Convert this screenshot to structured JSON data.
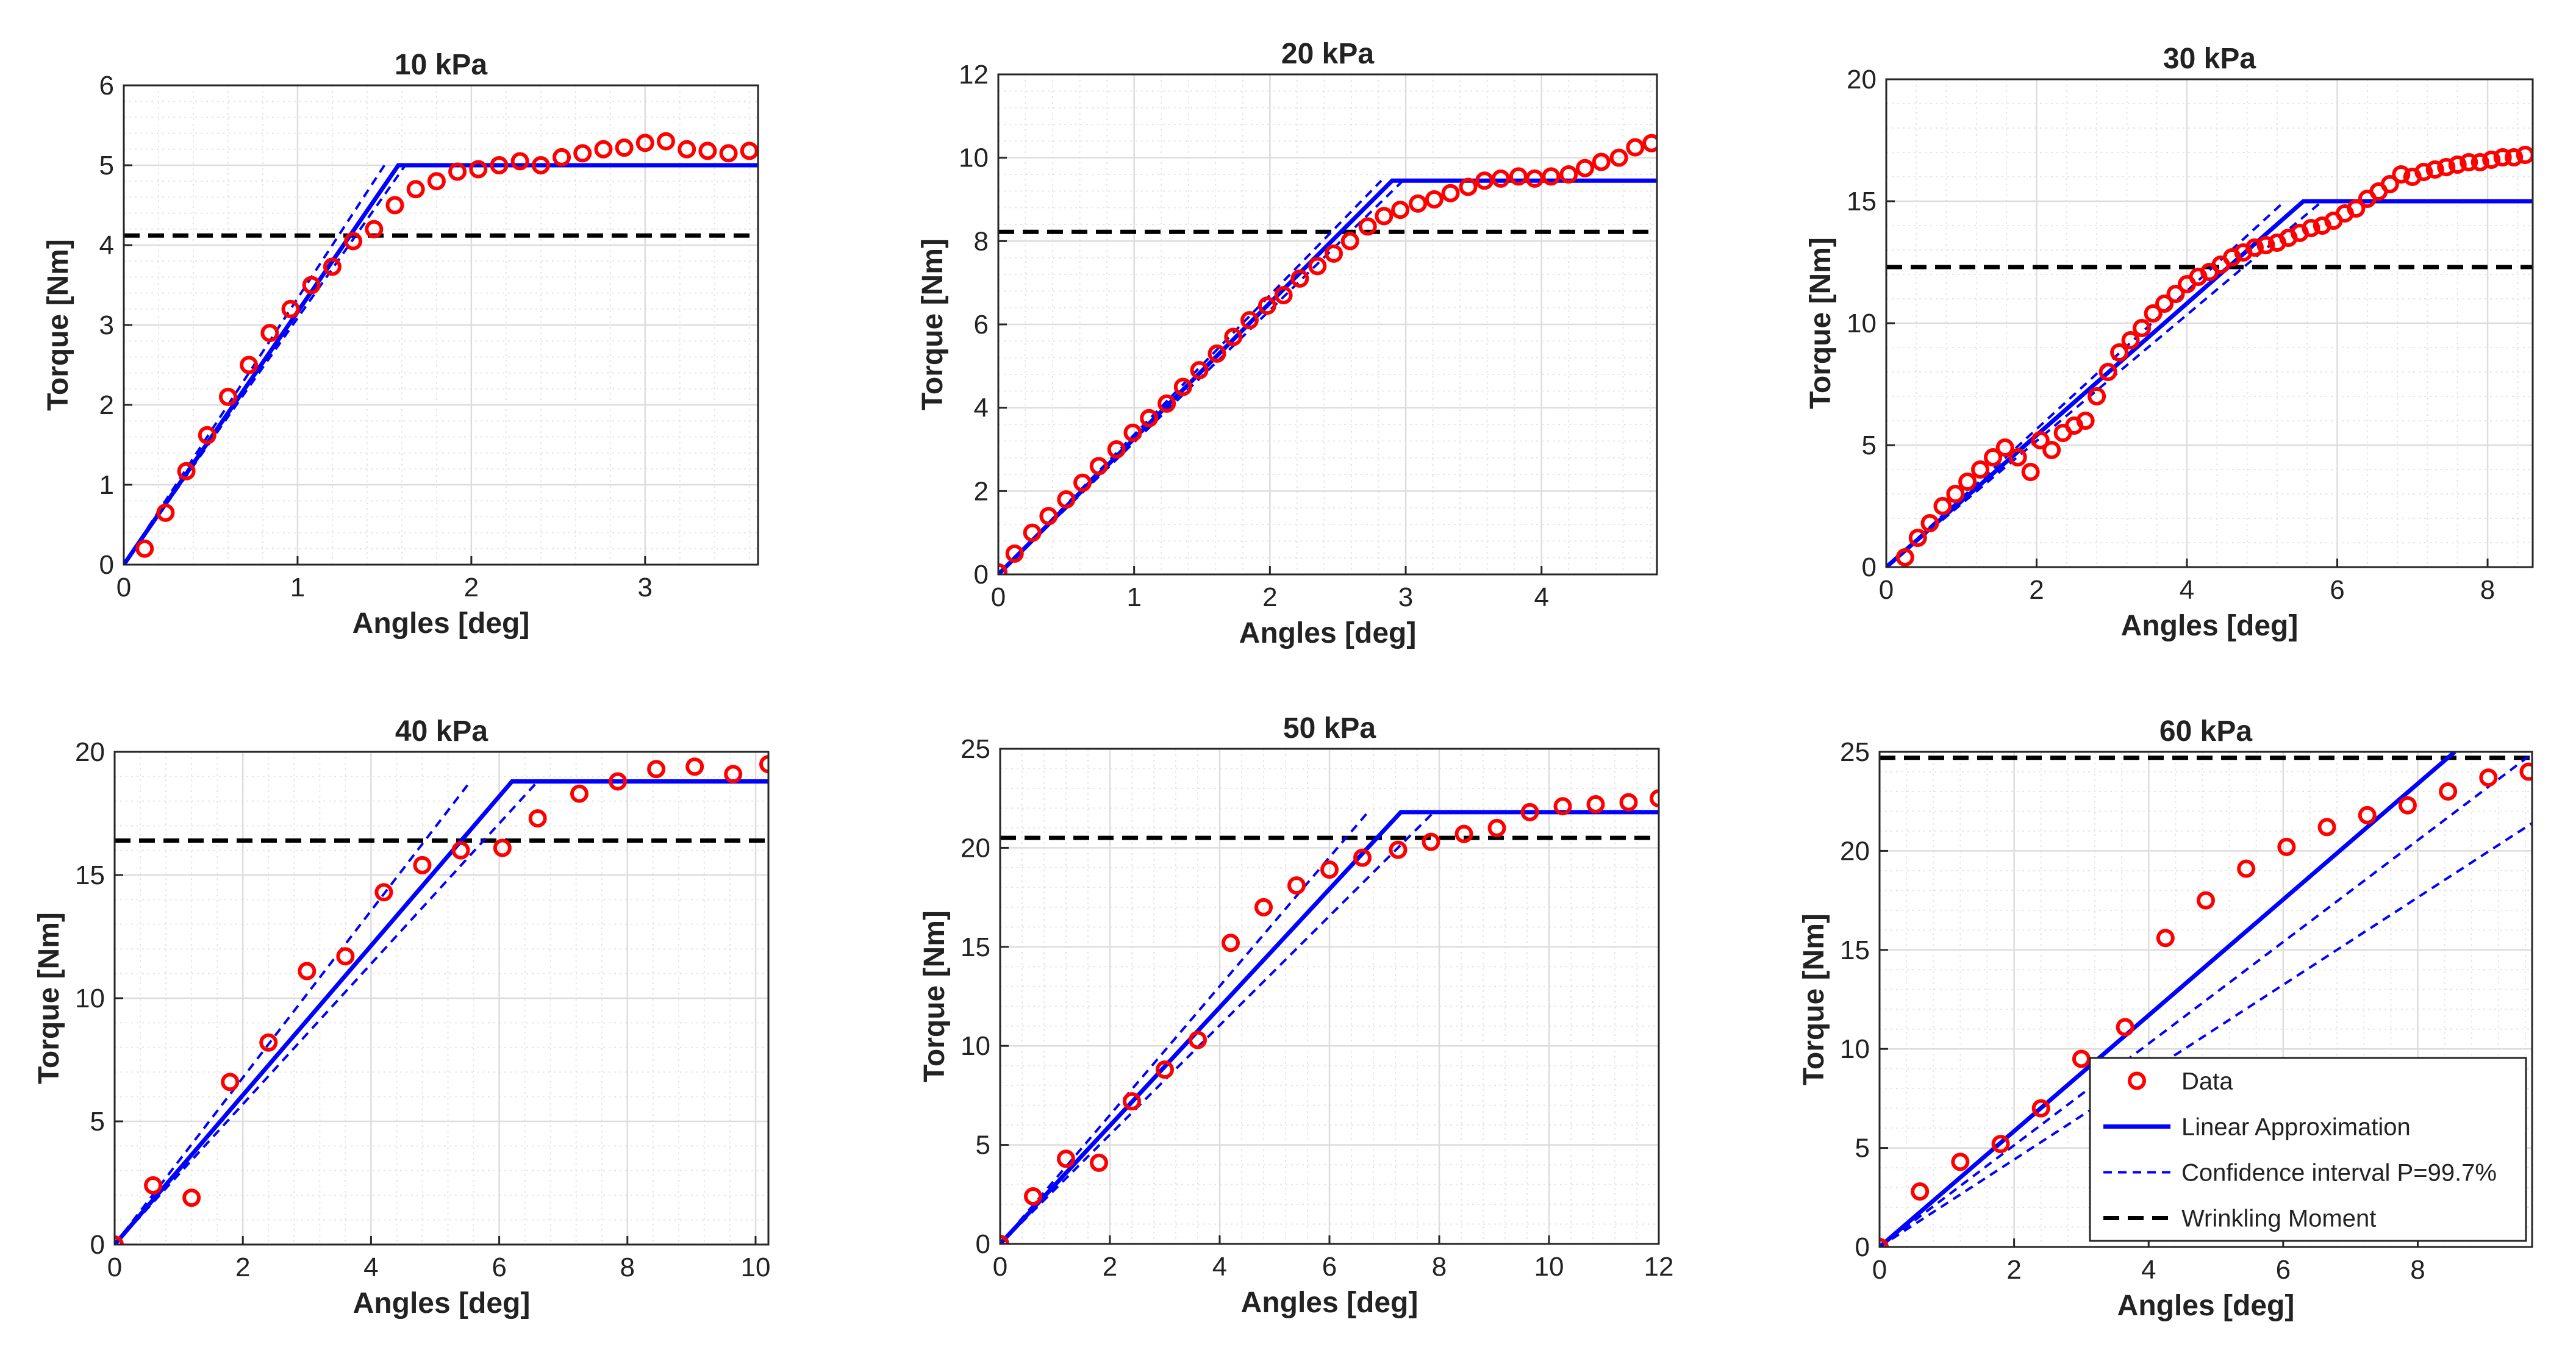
{
  "colors": {
    "data": "#ff0000",
    "linear": "#0000ff",
    "confidence": "#0000ff",
    "wrinkling": "#000000",
    "grid": "#dddddd",
    "axis": "#262626"
  },
  "legend": {
    "data": "Data",
    "linear": "Linear Approximation",
    "confidence": "Confidence interval P=99.7%",
    "wrinkling": "Wrinkling Moment"
  },
  "chart_data": [
    {
      "type": "scatter",
      "title": "10 kPa",
      "xlabel": "Angles [deg]",
      "ylabel": "Torque [Nm]",
      "xlim": [
        0,
        3.65
      ],
      "ylim": [
        0,
        6
      ],
      "xticks": [
        0,
        1,
        2,
        3
      ],
      "yticks": [
        0,
        1,
        2,
        3,
        4,
        5,
        6
      ],
      "data_x": [
        0.12,
        0.24,
        0.36,
        0.48,
        0.6,
        0.72,
        0.84,
        0.96,
        1.08,
        1.2,
        1.32,
        1.44,
        1.56,
        1.68,
        1.8,
        1.92,
        2.04,
        2.16,
        2.28,
        2.4,
        2.52,
        2.64,
        2.76,
        2.88,
        3.0,
        3.12,
        3.24,
        3.36,
        3.48,
        3.6
      ],
      "data_y": [
        0.2,
        0.65,
        1.17,
        1.62,
        2.1,
        2.5,
        2.9,
        3.2,
        3.5,
        3.73,
        4.05,
        4.2,
        4.5,
        4.7,
        4.8,
        4.92,
        4.95,
        5.0,
        5.05,
        5.0,
        5.1,
        5.15,
        5.2,
        5.22,
        5.28,
        5.3,
        5.2,
        5.18,
        5.15,
        5.18
      ],
      "linear": [
        [
          0,
          0
        ],
        [
          1.58,
          5.0
        ],
        [
          3.65,
          5.0
        ]
      ],
      "conf_upper": [
        [
          0,
          0
        ],
        [
          1.5,
          5.0
        ]
      ],
      "conf_lower": [
        [
          0,
          0
        ],
        [
          1.62,
          5.0
        ]
      ],
      "wrinkling": 4.12,
      "legend": false
    },
    {
      "type": "scatter",
      "title": "20 kPa",
      "xlabel": "Angles [deg]",
      "ylabel": "Torque [Nm]",
      "xlim": [
        0,
        4.85
      ],
      "ylim": [
        0,
        12
      ],
      "xticks": [
        0,
        1,
        2,
        3,
        4
      ],
      "yticks": [
        0,
        2,
        4,
        6,
        8,
        10,
        12
      ],
      "data_x": [
        0.0,
        0.12,
        0.25,
        0.37,
        0.5,
        0.62,
        0.74,
        0.87,
        0.99,
        1.11,
        1.24,
        1.36,
        1.48,
        1.61,
        1.73,
        1.85,
        1.98,
        2.1,
        2.22,
        2.35,
        2.47,
        2.59,
        2.72,
        2.84,
        2.96,
        3.09,
        3.21,
        3.33,
        3.46,
        3.58,
        3.7,
        3.83,
        3.95,
        4.07,
        4.2,
        4.32,
        4.44,
        4.57,
        4.69,
        4.81
      ],
      "data_y": [
        0.05,
        0.5,
        1.0,
        1.4,
        1.8,
        2.2,
        2.6,
        3.0,
        3.4,
        3.75,
        4.1,
        4.5,
        4.9,
        5.3,
        5.7,
        6.1,
        6.45,
        6.7,
        7.1,
        7.4,
        7.7,
        8.0,
        8.35,
        8.6,
        8.75,
        8.9,
        9.0,
        9.15,
        9.3,
        9.45,
        9.5,
        9.55,
        9.5,
        9.55,
        9.6,
        9.75,
        9.9,
        10.0,
        10.25,
        10.35
      ],
      "linear": [
        [
          0,
          0
        ],
        [
          2.9,
          9.45
        ],
        [
          4.85,
          9.45
        ]
      ],
      "conf_upper": [
        [
          0,
          0
        ],
        [
          2.82,
          9.45
        ]
      ],
      "conf_lower": [
        [
          0,
          0
        ],
        [
          2.98,
          9.45
        ]
      ],
      "wrinkling": 8.22,
      "legend": false
    },
    {
      "type": "scatter",
      "title": "30 kPa",
      "xlabel": "Angles [deg]",
      "ylabel": "Torque [Nm]",
      "xlim": [
        0,
        8.6
      ],
      "ylim": [
        0,
        20
      ],
      "xticks": [
        0,
        2,
        4,
        6,
        8
      ],
      "yticks": [
        0,
        5,
        10,
        15,
        20
      ],
      "data_x": [
        0.25,
        0.42,
        0.58,
        0.75,
        0.92,
        1.08,
        1.25,
        1.42,
        1.58,
        1.75,
        1.92,
        2.05,
        2.2,
        2.35,
        2.5,
        2.65,
        2.8,
        2.95,
        3.1,
        3.25,
        3.4,
        3.55,
        3.7,
        3.85,
        4.0,
        4.15,
        4.3,
        4.45,
        4.6,
        4.75,
        4.9,
        5.05,
        5.2,
        5.35,
        5.5,
        5.65,
        5.8,
        5.95,
        6.1,
        6.25,
        6.4,
        6.55,
        6.7,
        6.85,
        7.0,
        7.15,
        7.3,
        7.45,
        7.6,
        7.75,
        7.9,
        8.05,
        8.2,
        8.35,
        8.5
      ],
      "data_y": [
        0.4,
        1.2,
        1.8,
        2.5,
        3.0,
        3.5,
        4.0,
        4.5,
        4.9,
        4.5,
        3.9,
        5.2,
        4.8,
        5.5,
        5.8,
        6.0,
        7.0,
        8.0,
        8.8,
        9.3,
        9.8,
        10.4,
        10.8,
        11.2,
        11.6,
        11.9,
        12.1,
        12.4,
        12.7,
        12.9,
        13.1,
        13.2,
        13.3,
        13.5,
        13.7,
        13.9,
        14.0,
        14.2,
        14.5,
        14.7,
        15.1,
        15.4,
        15.7,
        16.1,
        16.0,
        16.2,
        16.3,
        16.4,
        16.5,
        16.6,
        16.6,
        16.7,
        16.8,
        16.8,
        16.9
      ],
      "linear": [
        [
          0,
          0
        ],
        [
          5.55,
          15.0
        ],
        [
          8.6,
          15.0
        ]
      ],
      "conf_upper": [
        [
          0,
          0
        ],
        [
          5.3,
          15.0
        ]
      ],
      "conf_lower": [
        [
          0,
          0
        ],
        [
          5.8,
          15.0
        ]
      ],
      "wrinkling": 12.3,
      "legend": false
    },
    {
      "type": "scatter",
      "title": "40 kPa",
      "xlabel": "Angles [deg]",
      "ylabel": "Torque [Nm]",
      "xlim": [
        0,
        10.2
      ],
      "ylim": [
        0,
        20
      ],
      "xticks": [
        0,
        2,
        4,
        6,
        8,
        10
      ],
      "yticks": [
        0,
        5,
        10,
        15,
        20
      ],
      "data_x": [
        0.0,
        0.6,
        1.2,
        1.8,
        2.4,
        3.0,
        3.6,
        4.2,
        4.8,
        5.4,
        6.05,
        6.6,
        7.25,
        7.85,
        8.45,
        9.05,
        9.65,
        10.2
      ],
      "data_y": [
        0.0,
        2.4,
        1.9,
        6.6,
        8.2,
        11.1,
        11.7,
        14.3,
        15.4,
        16.0,
        16.1,
        17.3,
        18.3,
        18.8,
        19.3,
        19.4,
        19.1,
        19.5
      ],
      "linear": [
        [
          0,
          0
        ],
        [
          6.2,
          18.8
        ],
        [
          10.2,
          18.8
        ]
      ],
      "conf_upper": [
        [
          0,
          0
        ],
        [
          5.55,
          18.8
        ]
      ],
      "conf_lower": [
        [
          0,
          0
        ],
        [
          6.6,
          18.8
        ]
      ],
      "wrinkling": 16.4,
      "legend": false
    },
    {
      "type": "scatter",
      "title": "50 kPa",
      "xlabel": "Angles [deg]",
      "ylabel": "Torque [Nm]",
      "xlim": [
        0,
        12
      ],
      "ylim": [
        0,
        25
      ],
      "xticks": [
        0,
        2,
        4,
        6,
        8,
        10,
        12
      ],
      "yticks": [
        0,
        5,
        10,
        15,
        20,
        25
      ],
      "data_x": [
        0.0,
        0.6,
        1.2,
        1.8,
        2.4,
        3.0,
        3.6,
        4.2,
        4.8,
        5.4,
        6.0,
        6.6,
        7.25,
        7.85,
        8.45,
        9.05,
        9.65,
        10.25,
        10.85,
        11.45,
        12.0
      ],
      "data_y": [
        0.0,
        2.4,
        4.3,
        4.1,
        7.2,
        8.8,
        10.3,
        15.2,
        17.0,
        18.1,
        18.9,
        19.5,
        19.9,
        20.3,
        20.7,
        21.0,
        21.8,
        22.1,
        22.2,
        22.3,
        22.5
      ],
      "linear": [
        [
          0,
          0
        ],
        [
          7.3,
          21.8
        ],
        [
          12.0,
          21.8
        ]
      ],
      "conf_upper": [
        [
          0,
          0
        ],
        [
          6.7,
          21.8
        ]
      ],
      "conf_lower": [
        [
          0,
          0
        ],
        [
          7.9,
          21.8
        ]
      ],
      "wrinkling": 20.5,
      "legend": false
    },
    {
      "type": "scatter",
      "title": "60 kPa",
      "xlabel": "Angles [deg]",
      "ylabel": "Torque [Nm]",
      "xlim": [
        0,
        9.7
      ],
      "ylim": [
        0,
        25
      ],
      "xticks": [
        0,
        2,
        4,
        6,
        8
      ],
      "yticks": [
        0,
        5,
        10,
        15,
        20,
        25
      ],
      "data_x": [
        0.0,
        0.6,
        1.2,
        1.8,
        2.4,
        3.0,
        3.65,
        4.25,
        4.85,
        5.45,
        6.05,
        6.65,
        7.25,
        7.85,
        8.45,
        9.05,
        9.65
      ],
      "data_y": [
        0.0,
        2.8,
        4.3,
        5.2,
        7.0,
        9.5,
        11.1,
        15.6,
        17.5,
        19.1,
        20.2,
        21.2,
        21.8,
        22.3,
        23.0,
        23.7,
        24.0
      ],
      "linear": [
        [
          0,
          0
        ],
        [
          8.55,
          25.0
        ]
      ],
      "conf_upper": [
        [
          0,
          0
        ],
        [
          9.7,
          24.9
        ]
      ],
      "conf_lower": [
        [
          0,
          0
        ],
        [
          9.7,
          21.4
        ]
      ],
      "wrinkling": 24.7,
      "legend": true
    }
  ]
}
